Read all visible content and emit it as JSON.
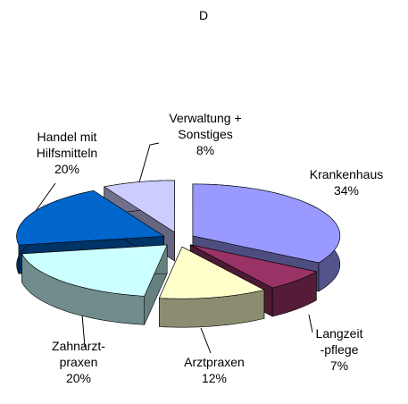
{
  "chart_data": {
    "type": "pie",
    "title": "D",
    "categories": [
      "Krankenhaus",
      "Langzeit\n-pflege",
      "Arztpraxen",
      "Zahnarzt-\npraxen",
      "Handel mit\nHilfsmitteln",
      "Verwaltung +\nSonstiges"
    ],
    "values": [
      34,
      7,
      12,
      20,
      20,
      8
    ],
    "value_labels": [
      "34%",
      "7%",
      "12%",
      "20%",
      "20%",
      "8%"
    ],
    "colors": [
      "#9999ff",
      "#993366",
      "#ffffcc",
      "#ccffff",
      "#0066cc",
      "#ccccff"
    ]
  }
}
